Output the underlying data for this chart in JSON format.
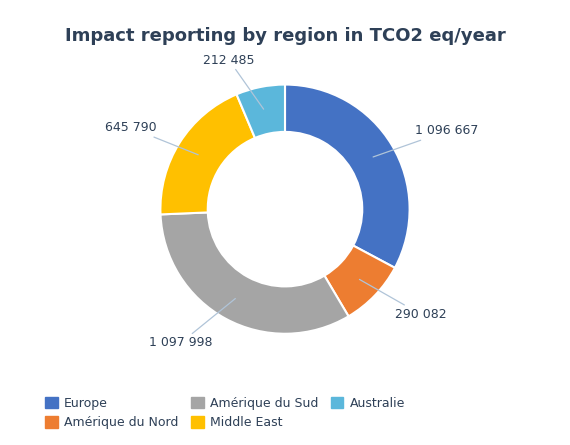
{
  "title": "Impact reporting by region in TCO2 eq/year",
  "labels": [
    "Europe",
    "Amérique du Nord",
    "Amérique du Sud",
    "Middle East",
    "Australie"
  ],
  "values": [
    1096667,
    290082,
    1097998,
    645790,
    212485
  ],
  "colors": [
    "#4472C4",
    "#ED7D31",
    "#A5A5A5",
    "#FFC000",
    "#5BB7DB"
  ],
  "label_values": [
    "1 096 667",
    "290 082",
    "1 097 998",
    "645 790",
    "212 485"
  ],
  "title_color": "#2E4057",
  "label_color": "#2E4057",
  "line_color": "#B0C4D8",
  "background_color": "#FFFFFF",
  "donut_width": 0.38,
  "title_fontsize": 13,
  "label_fontsize": 9,
  "legend_fontsize": 9
}
